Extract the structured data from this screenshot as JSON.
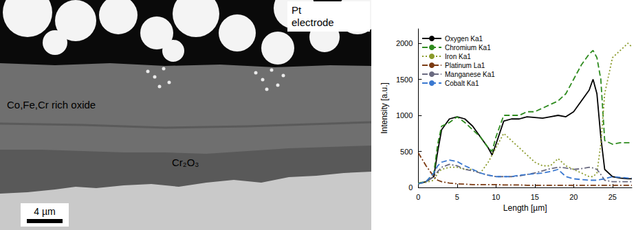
{
  "chart_data": {
    "type": "line",
    "xlabel": "Length [µm]",
    "ylabel": "Intensity [a.u.]",
    "xlim": [
      0,
      27.5
    ],
    "xticks": [
      0,
      5,
      10,
      15,
      20,
      25
    ],
    "ylim": [
      0,
      2200
    ],
    "yticks": [
      0,
      500,
      1000,
      1500,
      2000
    ],
    "grid": false,
    "legend": "upper left",
    "x": [
      0,
      1,
      2,
      2.5,
      3,
      4,
      5,
      6,
      7,
      8,
      9,
      9.5,
      10,
      11,
      12,
      13,
      14,
      15,
      16,
      17,
      18,
      19,
      20,
      21,
      22,
      22.5,
      23,
      23.5,
      24,
      25,
      26,
      27,
      27.5
    ],
    "series": [
      {
        "name": "Oxygen Ka1",
        "color": "#000000",
        "line_style": "solid",
        "values": [
          50,
          80,
          150,
          500,
          800,
          950,
          980,
          950,
          850,
          700,
          550,
          450,
          600,
          920,
          950,
          950,
          980,
          970,
          960,
          980,
          1000,
          980,
          1050,
          1200,
          1350,
          1500,
          1300,
          700,
          250,
          150,
          130,
          120,
          120
        ]
      },
      {
        "name": "Chromium Ka1",
        "color": "#2e8b1e",
        "line_style": "dashed",
        "values": [
          60,
          80,
          200,
          600,
          850,
          900,
          980,
          900,
          800,
          700,
          550,
          500,
          700,
          1000,
          1000,
          1000,
          1050,
          1050,
          1100,
          1150,
          1200,
          1300,
          1500,
          1700,
          1850,
          1900,
          1800,
          1500,
          650,
          600,
          620,
          620,
          620
        ]
      },
      {
        "name": "Iron Ka1",
        "color": "#8a9a2a",
        "line_style": "dotted",
        "values": [
          50,
          70,
          100,
          200,
          250,
          280,
          280,
          250,
          250,
          200,
          350,
          450,
          550,
          750,
          650,
          550,
          450,
          350,
          300,
          300,
          400,
          300,
          250,
          200,
          150,
          150,
          200,
          600,
          1300,
          1800,
          1900,
          2000,
          1950
        ]
      },
      {
        "name": "Platinum La1",
        "color": "#7b3a12",
        "line_style": "dashdot",
        "values": [
          480,
          300,
          150,
          100,
          80,
          60,
          50,
          45,
          40,
          40,
          40,
          40,
          40,
          35,
          35,
          35,
          30,
          30,
          30,
          30,
          30,
          30,
          30,
          30,
          30,
          30,
          30,
          30,
          30,
          30,
          30,
          30,
          30
        ]
      },
      {
        "name": "Manganese Ka1",
        "color": "#6a6a80",
        "line_style": "dashdot",
        "values": [
          50,
          80,
          150,
          220,
          280,
          320,
          300,
          250,
          230,
          200,
          170,
          160,
          150,
          150,
          150,
          160,
          180,
          200,
          230,
          260,
          280,
          270,
          250,
          260,
          280,
          270,
          250,
          180,
          100,
          80,
          80,
          80,
          80
        ]
      },
      {
        "name": "Cobalt Ka1",
        "color": "#3a78d0",
        "line_style": "dashed",
        "values": [
          50,
          80,
          200,
          300,
          350,
          380,
          360,
          300,
          250,
          200,
          170,
          160,
          150,
          150,
          150,
          170,
          180,
          190,
          200,
          220,
          250,
          150,
          120,
          110,
          100,
          100,
          100,
          110,
          120,
          150,
          140,
          130,
          130
        ]
      }
    ]
  },
  "micrograph": {
    "electrode": "Pt electrode",
    "outer_layer": "Co,Fe,Cr rich oxide",
    "inner_layer": "Cr₂O₃",
    "scale_bar": "4 µm"
  }
}
